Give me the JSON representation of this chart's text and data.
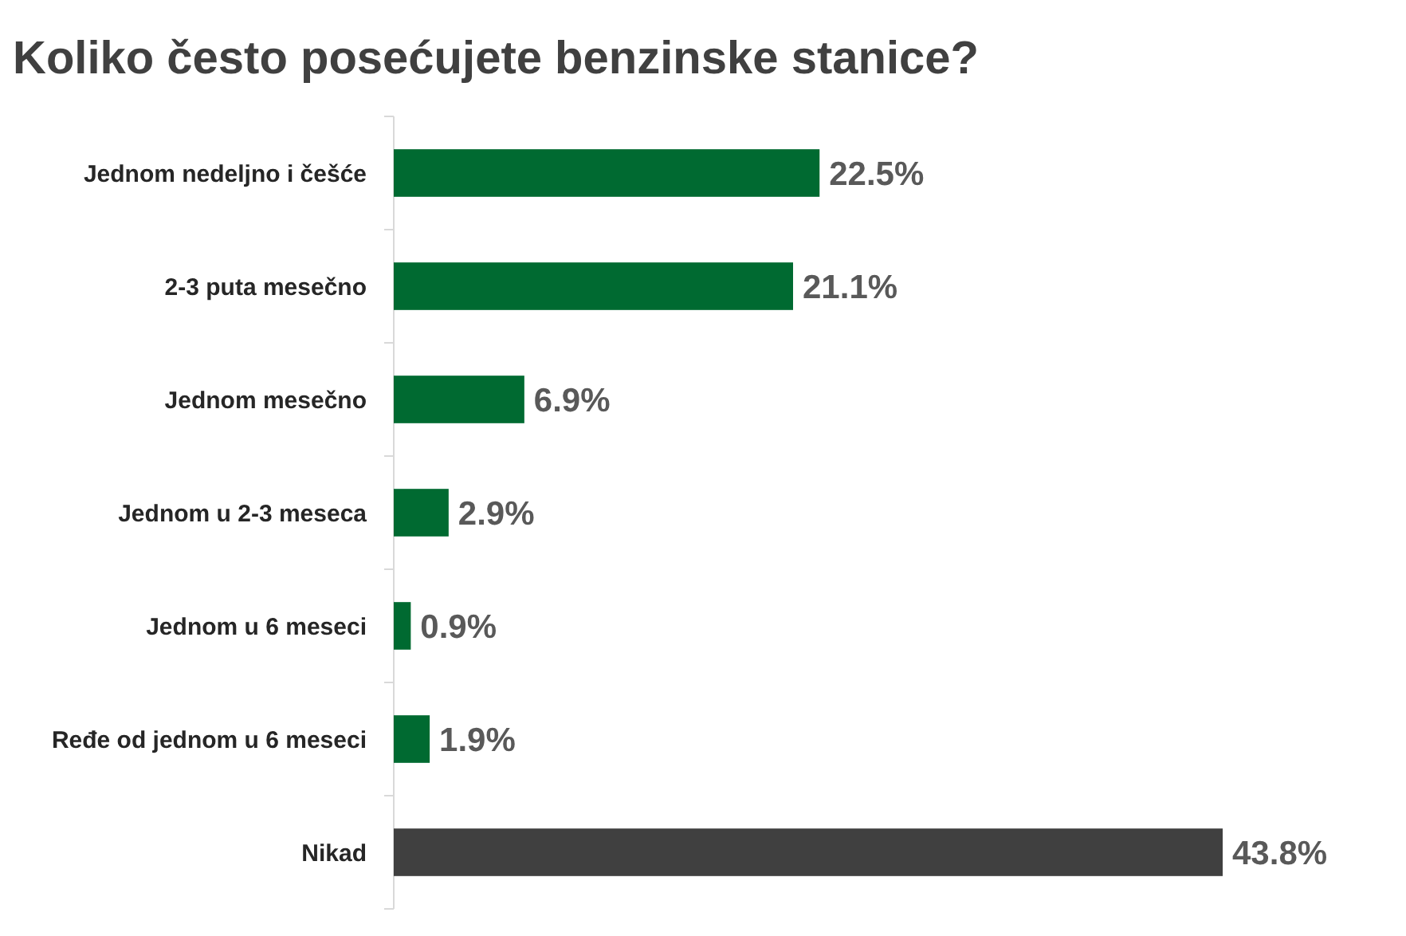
{
  "chart_data": {
    "type": "bar",
    "orientation": "horizontal",
    "title": "Koliko često posećujete benzinske stanice?",
    "categories": [
      "Jednom nedeljno i češće",
      "2-3 puta mesečno",
      "Jednom mesečno",
      "Jednom u 2-3 meseca",
      "Jednom u 6 meseci",
      "Ređe od jednom u 6 meseci",
      "Nikad"
    ],
    "values": [
      22.5,
      21.1,
      6.9,
      2.9,
      0.9,
      1.9,
      43.8
    ],
    "colors": [
      "#006a31",
      "#006a31",
      "#006a31",
      "#006a31",
      "#006a31",
      "#006a31",
      "#404040"
    ],
    "value_labels": [
      "22.5%",
      "21.1%",
      "6.9%",
      "2.9%",
      "0.9%",
      "1.9%",
      "43.8%"
    ]
  }
}
